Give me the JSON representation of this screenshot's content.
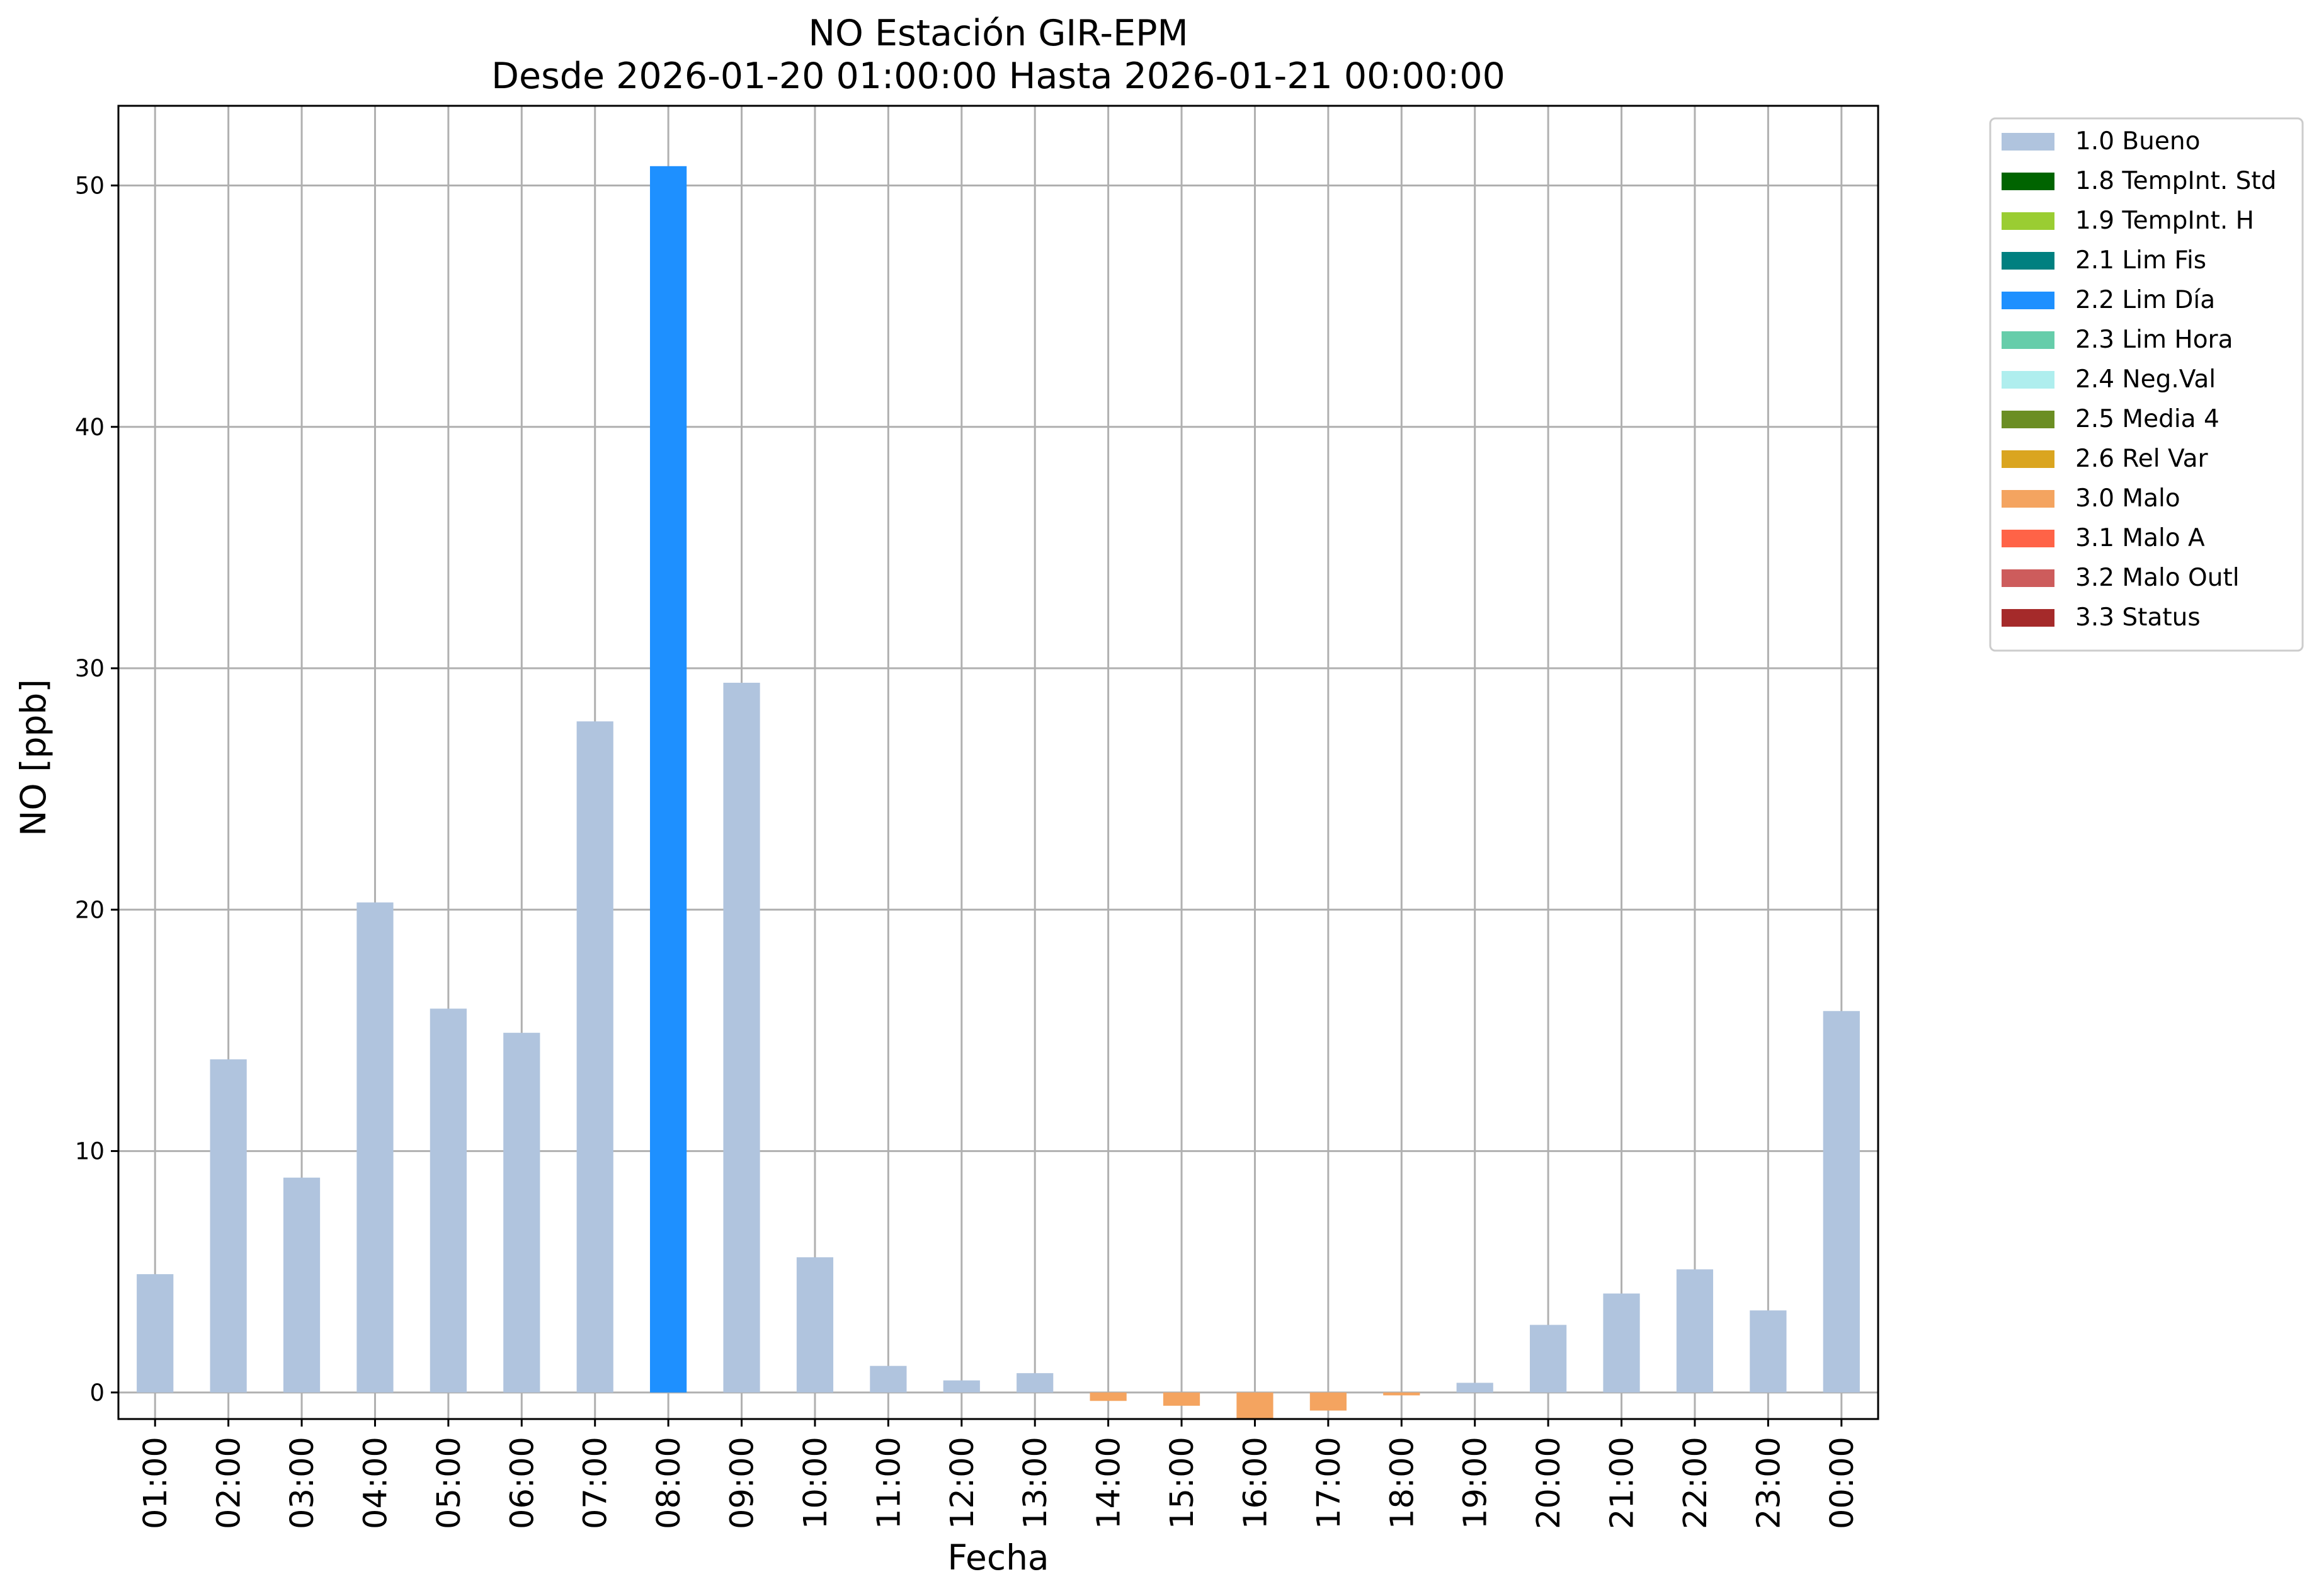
{
  "chart_data": {
    "type": "bar",
    "title": "NO Estación GIR-EPM",
    "subtitle": "Desde 2026-01-20 01:00:00 Hasta 2026-01-21 00:00:00",
    "xlabel": "Fecha",
    "ylabel": "NO [ppb]",
    "ylim": [
      -1.1,
      53.3
    ],
    "yticks": [
      0,
      10,
      20,
      30,
      40,
      50
    ],
    "grid": true,
    "legend_position": "outside-top-right",
    "categories": [
      "01:00",
      "02:00",
      "03:00",
      "04:00",
      "05:00",
      "06:00",
      "07:00",
      "08:00",
      "09:00",
      "10:00",
      "11:00",
      "12:00",
      "13:00",
      "14:00",
      "15:00",
      "16:00",
      "17:00",
      "18:00",
      "19:00",
      "20:00",
      "21:00",
      "22:00",
      "23:00",
      "00:00"
    ],
    "values": [
      4.9,
      13.8,
      8.9,
      20.3,
      15.9,
      14.9,
      27.8,
      50.8,
      29.4,
      5.6,
      1.1,
      0.5,
      0.8,
      -0.35,
      -0.55,
      -1.1,
      -0.75,
      -0.12,
      0.4,
      2.8,
      4.1,
      5.1,
      3.4,
      15.8
    ],
    "flags": [
      "1.0 Bueno",
      "1.0 Bueno",
      "1.0 Bueno",
      "1.0 Bueno",
      "1.0 Bueno",
      "1.0 Bueno",
      "1.0 Bueno",
      "2.2 Lim Día",
      "1.0 Bueno",
      "1.0 Bueno",
      "1.0 Bueno",
      "1.0 Bueno",
      "1.0 Bueno",
      "3.0 Malo",
      "3.0 Malo",
      "3.0 Malo",
      "3.0 Malo",
      "3.0 Malo",
      "1.0 Bueno",
      "1.0 Bueno",
      "1.0 Bueno",
      "1.0 Bueno",
      "1.0 Bueno",
      "1.0 Bueno"
    ],
    "legend": [
      {
        "label": "1.0 Bueno",
        "color": "#b0c4de"
      },
      {
        "label": "1.8 TempInt. Std",
        "color": "#006400"
      },
      {
        "label": "1.9 TempInt. H",
        "color": "#9acd32"
      },
      {
        "label": "2.1 Lim Fis",
        "color": "#008080"
      },
      {
        "label": "2.2 Lim Día",
        "color": "#1e90ff"
      },
      {
        "label": "2.3 Lim Hora",
        "color": "#66cdaa"
      },
      {
        "label": "2.4 Neg.Val",
        "color": "#afeeee"
      },
      {
        "label": "2.5 Media 4",
        "color": "#6b8e23"
      },
      {
        "label": "2.6 Rel Var",
        "color": "#daa520"
      },
      {
        "label": "3.0 Malo",
        "color": "#f4a460"
      },
      {
        "label": "3.1 Malo A",
        "color": "#ff6347"
      },
      {
        "label": "3.2 Malo Outl",
        "color": "#cd5c5c"
      },
      {
        "label": "3.3 Status",
        "color": "#a52a2a"
      }
    ]
  }
}
